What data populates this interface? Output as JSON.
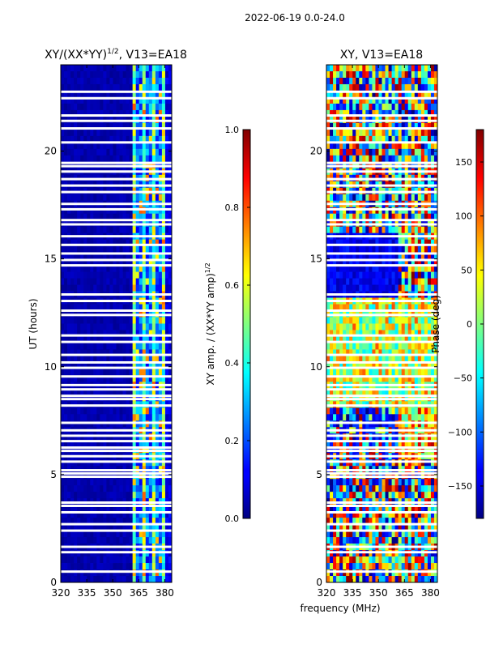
{
  "suptitle": "2022-06-19 0.0-24.0",
  "chart_data": [
    {
      "type": "heatmap",
      "title": "XY/(XX*YY)^1/2, V13=EA18",
      "title_main": "XY/(XX*YY)",
      "title_exp": "1/2",
      "title_tail": ", V13=EA18",
      "xlabel": "",
      "ylabel": "UT (hours)",
      "xlim": [
        320,
        384
      ],
      "ylim": [
        0,
        24
      ],
      "xticks": [
        320,
        335,
        350,
        365,
        380
      ],
      "yticks": [
        0,
        5,
        10,
        15,
        20
      ],
      "colorbar": {
        "label_main": "XY amp. / (XX*YY amp)",
        "label_exp": "1/2",
        "range": [
          0.0,
          1.0
        ],
        "ticks": [
          "0.0",
          "0.2",
          "0.4",
          "0.6",
          "0.8",
          "1.0"
        ],
        "colormap": "jet"
      }
    },
    {
      "type": "heatmap",
      "title": "XY, V13=EA18",
      "xlabel": "frequency (MHz)",
      "ylabel": "",
      "xlim": [
        320,
        384
      ],
      "ylim": [
        0,
        24
      ],
      "xticks": [
        320,
        335,
        350,
        365,
        380
      ],
      "yticks": [
        0,
        5,
        10,
        15,
        20
      ],
      "colorbar": {
        "label": "Phase (deg)",
        "range": [
          -180,
          180
        ],
        "ticks": [
          "−150",
          "−100",
          "−50",
          "0",
          "50",
          "100",
          "150"
        ],
        "colormap": "jet"
      }
    }
  ],
  "gaps_hours": [
    0.5,
    1.4,
    1.65,
    2.4,
    2.7,
    3.25,
    3.55,
    3.7,
    4.9,
    5.05,
    5.2,
    5.6,
    5.85,
    6.1,
    6.25,
    6.55,
    6.8,
    7.05,
    7.4,
    8.2,
    8.5,
    8.65,
    8.95,
    9.15,
    9.55,
    9.95,
    10.2,
    10.55,
    11.15,
    11.45,
    12.4,
    12.6,
    13.05,
    13.35,
    14.7,
    14.95,
    15.25,
    15.65,
    16.05,
    16.6,
    16.8,
    17.3,
    17.55,
    18.1,
    18.4,
    18.7,
    19.05,
    19.3,
    19.45,
    20.4,
    21.05,
    21.4,
    21.65,
    22.45,
    22.75
  ]
}
